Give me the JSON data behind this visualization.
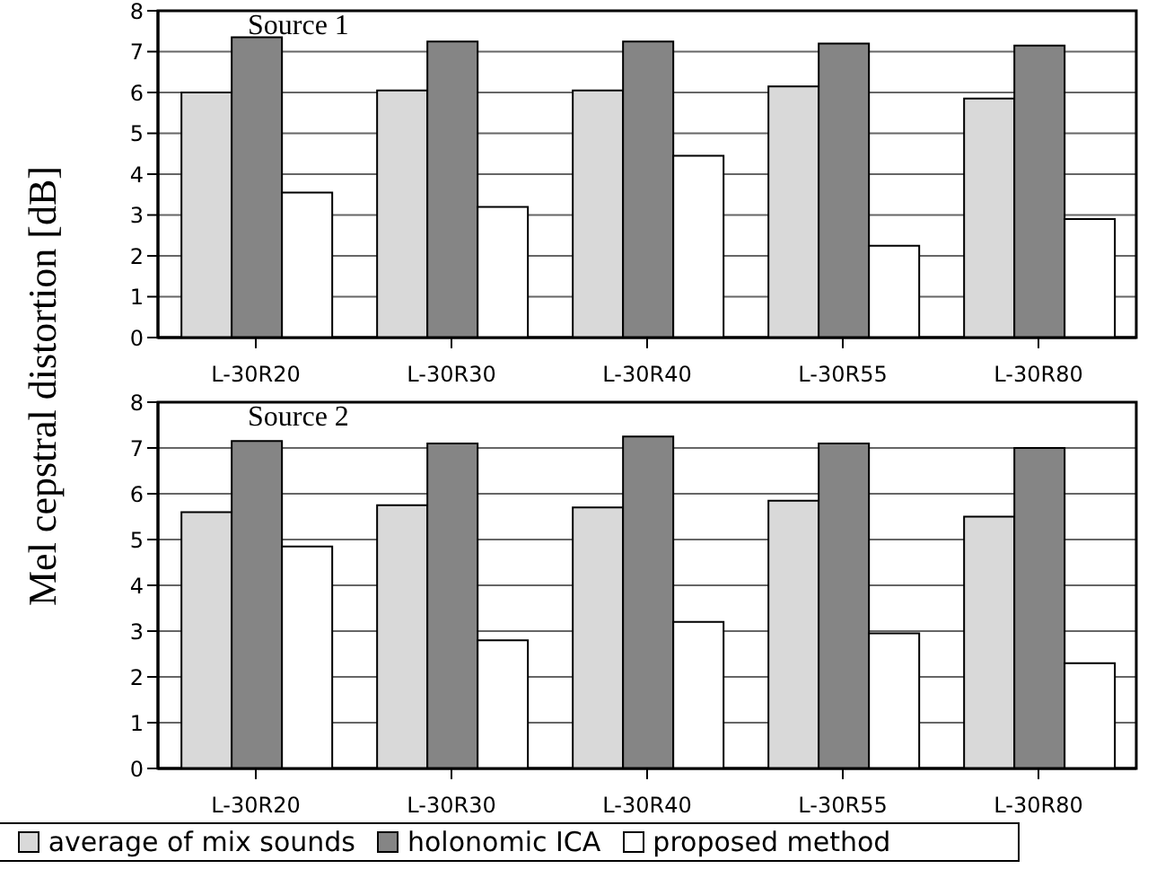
{
  "chart_data": [
    {
      "type": "bar",
      "ylabel": "Mel cepstral distortion [dB]",
      "categories": [
        "L-30R20",
        "L-30R30",
        "L-30R40",
        "L-30R55",
        "L-30R80"
      ],
      "annotations": [
        "Source 1"
      ],
      "ylim": [
        0,
        8
      ],
      "yticks": [
        0,
        1,
        2,
        3,
        4,
        5,
        6,
        7,
        8
      ],
      "grid": "y",
      "series": [
        {
          "color": "#d9d9d9",
          "values": [
            6.0,
            6.05,
            6.05,
            6.15,
            5.85
          ]
        },
        {
          "color": "#858585",
          "values": [
            7.35,
            7.25,
            7.25,
            7.2,
            7.15
          ]
        },
        {
          "color": "#ffffff",
          "values": [
            3.55,
            3.2,
            4.45,
            2.25,
            2.9
          ]
        }
      ]
    },
    {
      "type": "bar",
      "categories": [
        "L-30R20",
        "L-30R30",
        "L-30R40",
        "L-30R55",
        "L-30R80"
      ],
      "annotations": [
        "Source 2"
      ],
      "ylim": [
        0,
        8
      ],
      "yticks": [
        0,
        1,
        2,
        3,
        4,
        5,
        6,
        7,
        8
      ],
      "grid": "y",
      "legend": "bottom",
      "series": [
        {
          "name": "average of mix sounds",
          "color": "#d9d9d9",
          "values": [
            5.6,
            5.75,
            5.7,
            5.85,
            5.5
          ]
        },
        {
          "name": "holonomic ICA",
          "color": "#858585",
          "values": [
            7.15,
            7.1,
            7.25,
            7.1,
            7.0
          ]
        },
        {
          "name": "proposed method",
          "color": "#ffffff",
          "values": [
            4.85,
            2.8,
            3.2,
            2.95,
            2.3
          ]
        }
      ]
    }
  ]
}
